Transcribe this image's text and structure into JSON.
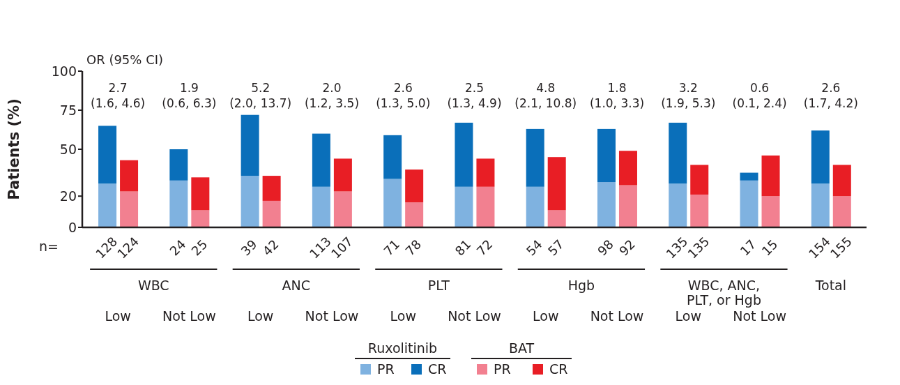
{
  "chart_data": {
    "type": "bar",
    "stacked": true,
    "ylabel": "Patients (%)",
    "categories": [
      "128",
      "124",
      "24",
      "25",
      "39",
      "42",
      "113",
      "107",
      "71",
      "78",
      "81",
      "72",
      "54",
      "57",
      "98",
      "92",
      "135",
      "135",
      "17",
      "15",
      "154",
      "155"
    ],
    "series": [
      {
        "name": "PR",
        "colors": [
          "#7fb2e0",
          "#f28090",
          "#7fb2e0",
          "#f28090",
          "#7fb2e0",
          "#f28090",
          "#7fb2e0",
          "#f28090",
          "#7fb2e0",
          "#f28090",
          "#7fb2e0",
          "#f28090",
          "#7fb2e0",
          "#f28090",
          "#7fb2e0",
          "#f28090",
          "#7fb2e0",
          "#f28090",
          "#7fb2e0",
          "#f28090",
          "#7fb2e0",
          "#f28090"
        ],
        "values": [
          28,
          23,
          30,
          11,
          33,
          17,
          26,
          23,
          31,
          16,
          26,
          26,
          26,
          11,
          29,
          27,
          28,
          21,
          30,
          20,
          28,
          20
        ]
      },
      {
        "name": "CR",
        "colors": [
          "#0a6fba",
          "#e81e25",
          "#0a6fba",
          "#e81e25",
          "#0a6fba",
          "#e81e25",
          "#0a6fba",
          "#e81e25",
          "#0a6fba",
          "#e81e25",
          "#0a6fba",
          "#e81e25",
          "#0a6fba",
          "#e81e25",
          "#0a6fba",
          "#e81e25",
          "#0a6fba",
          "#e81e25",
          "#0a6fba",
          "#e81e25",
          "#0a6fba",
          "#e81e25"
        ],
        "values": [
          37,
          20,
          20,
          21,
          39,
          16,
          34,
          21,
          28,
          21,
          41,
          18,
          37,
          34,
          34,
          22,
          39,
          19,
          5,
          26,
          34,
          20
        ]
      }
    ],
    "ylim": [
      0,
      100
    ],
    "yticks": [
      0,
      20,
      50,
      75,
      100
    ],
    "legend": "bottom",
    "annotations": [
      "OR (95% CI)",
      "2.7 (1.6, 4.6)",
      "1.9 (0.6, 6.3)",
      "5.2 (2.0, 13.7)",
      "2.0 (1.2, 3.5)",
      "2.6 (1.3, 5.0)",
      "2.5 (1.3, 4.9)",
      "4.8 (2.1, 10.8)",
      "1.8 (1.0, 3.3)",
      "3.2 (1.9, 5.3)",
      "0.6 (0.1, 2.4)",
      "2.6 (1.7, 4.2)",
      "n=",
      "WBC",
      "ANC",
      "PLT",
      "Hgb",
      "WBC, ANC, PLT, or Hgb",
      "Total",
      "Low",
      "Not Low",
      "Low",
      "Not Low",
      "Low",
      "Not Low",
      "Low",
      "Not Low",
      "Low",
      "Not Low",
      "Ruxolitinib",
      "BAT"
    ]
  }
}
